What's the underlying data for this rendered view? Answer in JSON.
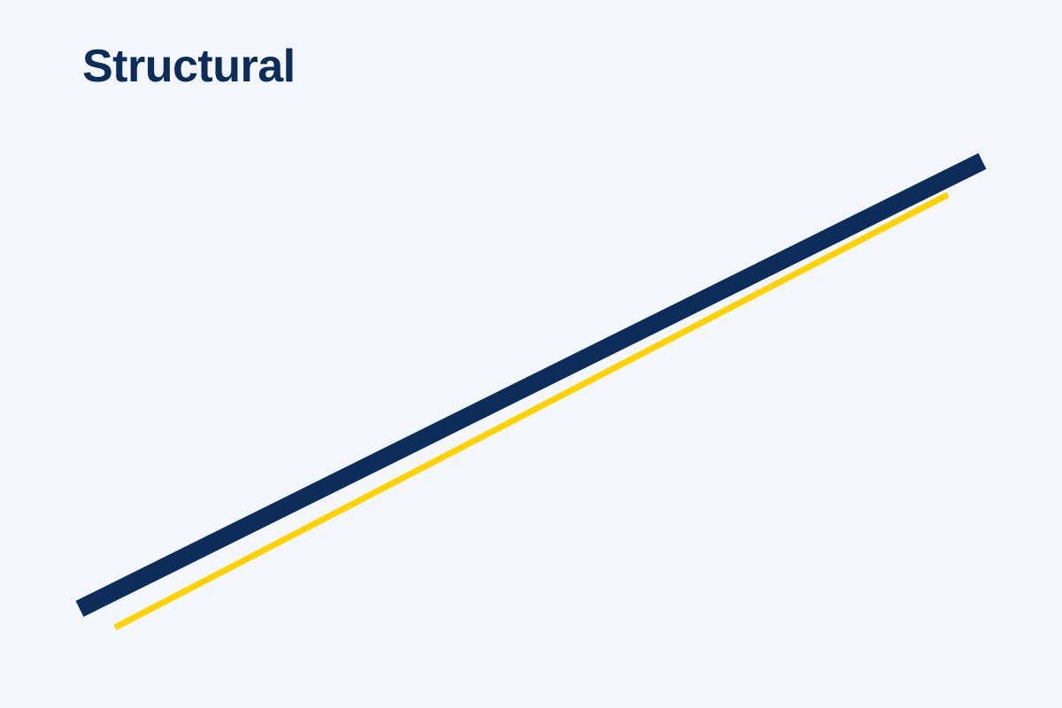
{
  "heading": {
    "text": "Structural"
  },
  "colors": {
    "background": "#F3F7FC",
    "heading": "#0C2D5A",
    "primary_line": "#0C2D5A",
    "accent_line": "#FFD200"
  }
}
